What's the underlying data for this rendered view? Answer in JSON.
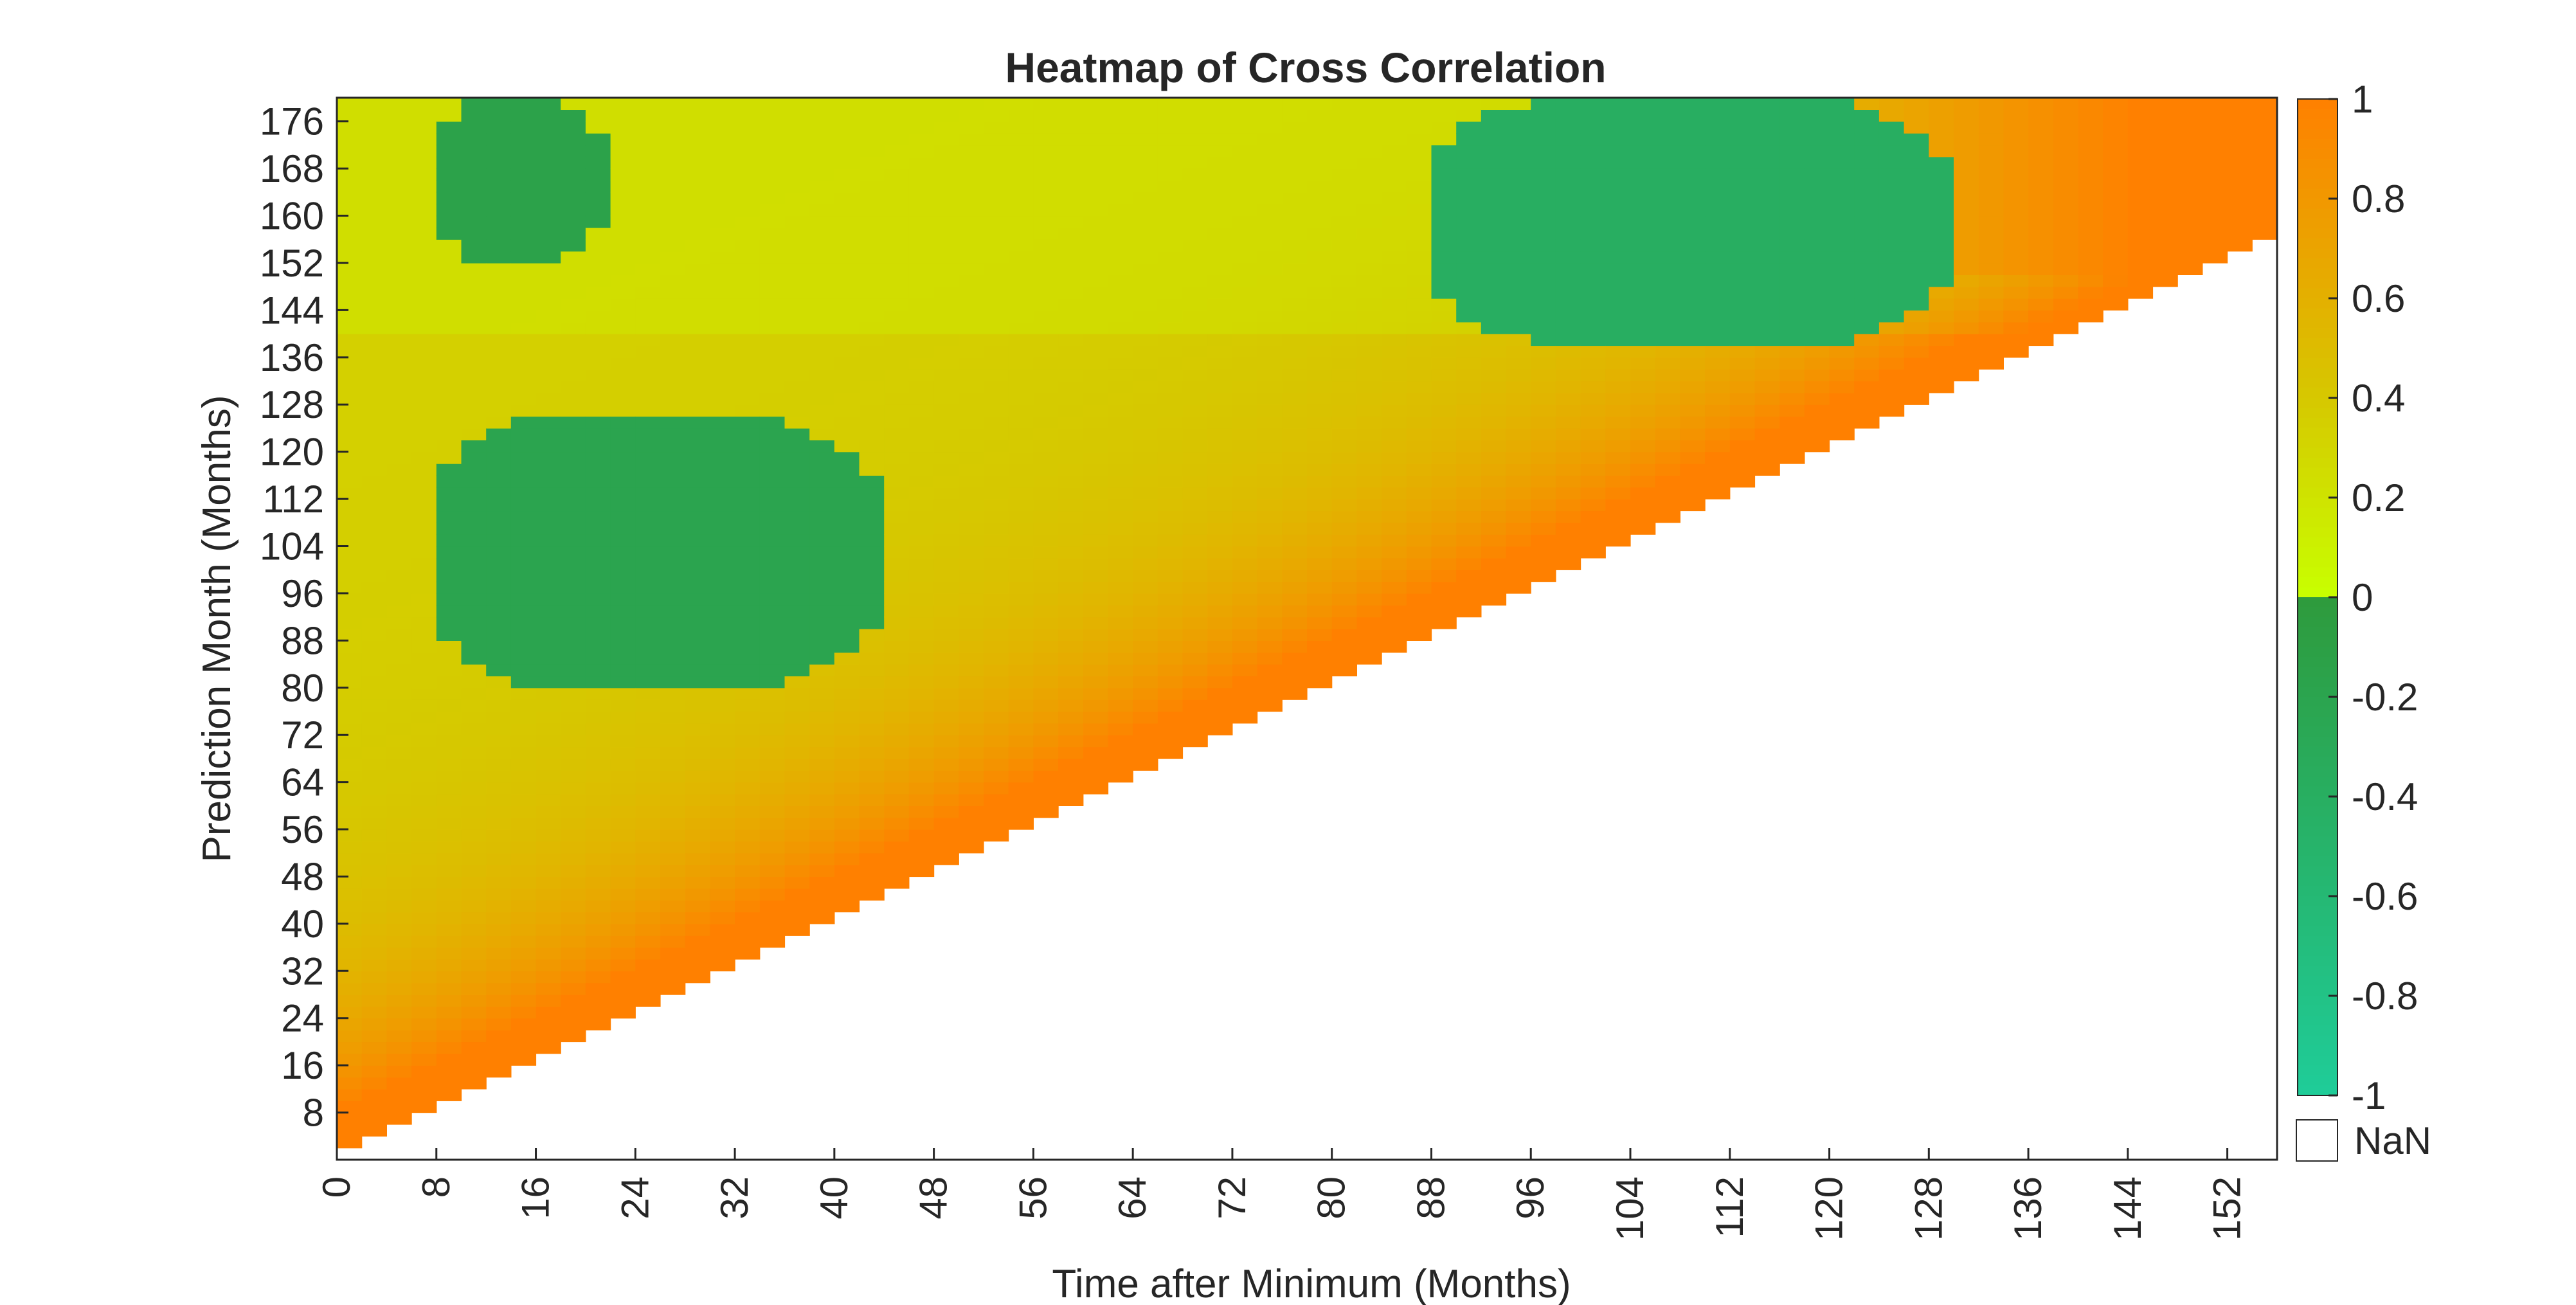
{
  "chart_data": {
    "type": "heatmap",
    "title": "Heatmap of Cross Correlation",
    "xlabel": "Time after Minimum (Months)",
    "ylabel": "Prediction Month (Months)",
    "xlim": [
      0,
      156
    ],
    "ylim": [
      0,
      180
    ],
    "x_ticks": [
      "0",
      "8",
      "16",
      "24",
      "32",
      "40",
      "48",
      "56",
      "64",
      "72",
      "80",
      "88",
      "96",
      "104",
      "112",
      "120",
      "128",
      "136",
      "144",
      "152"
    ],
    "y_ticks": [
      "8",
      "16",
      "24",
      "32",
      "40",
      "48",
      "56",
      "64",
      "72",
      "80",
      "88",
      "96",
      "104",
      "112",
      "120",
      "128",
      "136",
      "144",
      "152",
      "160",
      "168",
      "176"
    ],
    "valid_region": "cells where prediction month > time after minimum; remaining cells are NaN",
    "colorbar": {
      "range": [
        -1,
        1
      ],
      "ticks": [
        "1",
        "0.8",
        "0.6",
        "0.4",
        "0.2",
        "0",
        "-0.2",
        "-0.4",
        "-0.6",
        "-0.8",
        "-1"
      ],
      "nan_label": "NaN",
      "colors": {
        "positive_low": "#c8ff00",
        "positive_mid": "#d6c800",
        "positive_high": "#ff8000",
        "negative_low": "#2e9a3c",
        "negative_high": "#1fcc99",
        "nan": "#ffffff"
      }
    },
    "negative_regions": [
      {
        "x_range": [
          8,
          21
        ],
        "y_range": [
          153,
          180
        ],
        "value": -0.15
      },
      {
        "x_range": [
          8,
          43
        ],
        "y_range": [
          80,
          126
        ],
        "value": -0.2
      },
      {
        "x_range": [
          88,
          129
        ],
        "y_range": [
          138,
          180
        ],
        "value": -0.4
      }
    ]
  }
}
